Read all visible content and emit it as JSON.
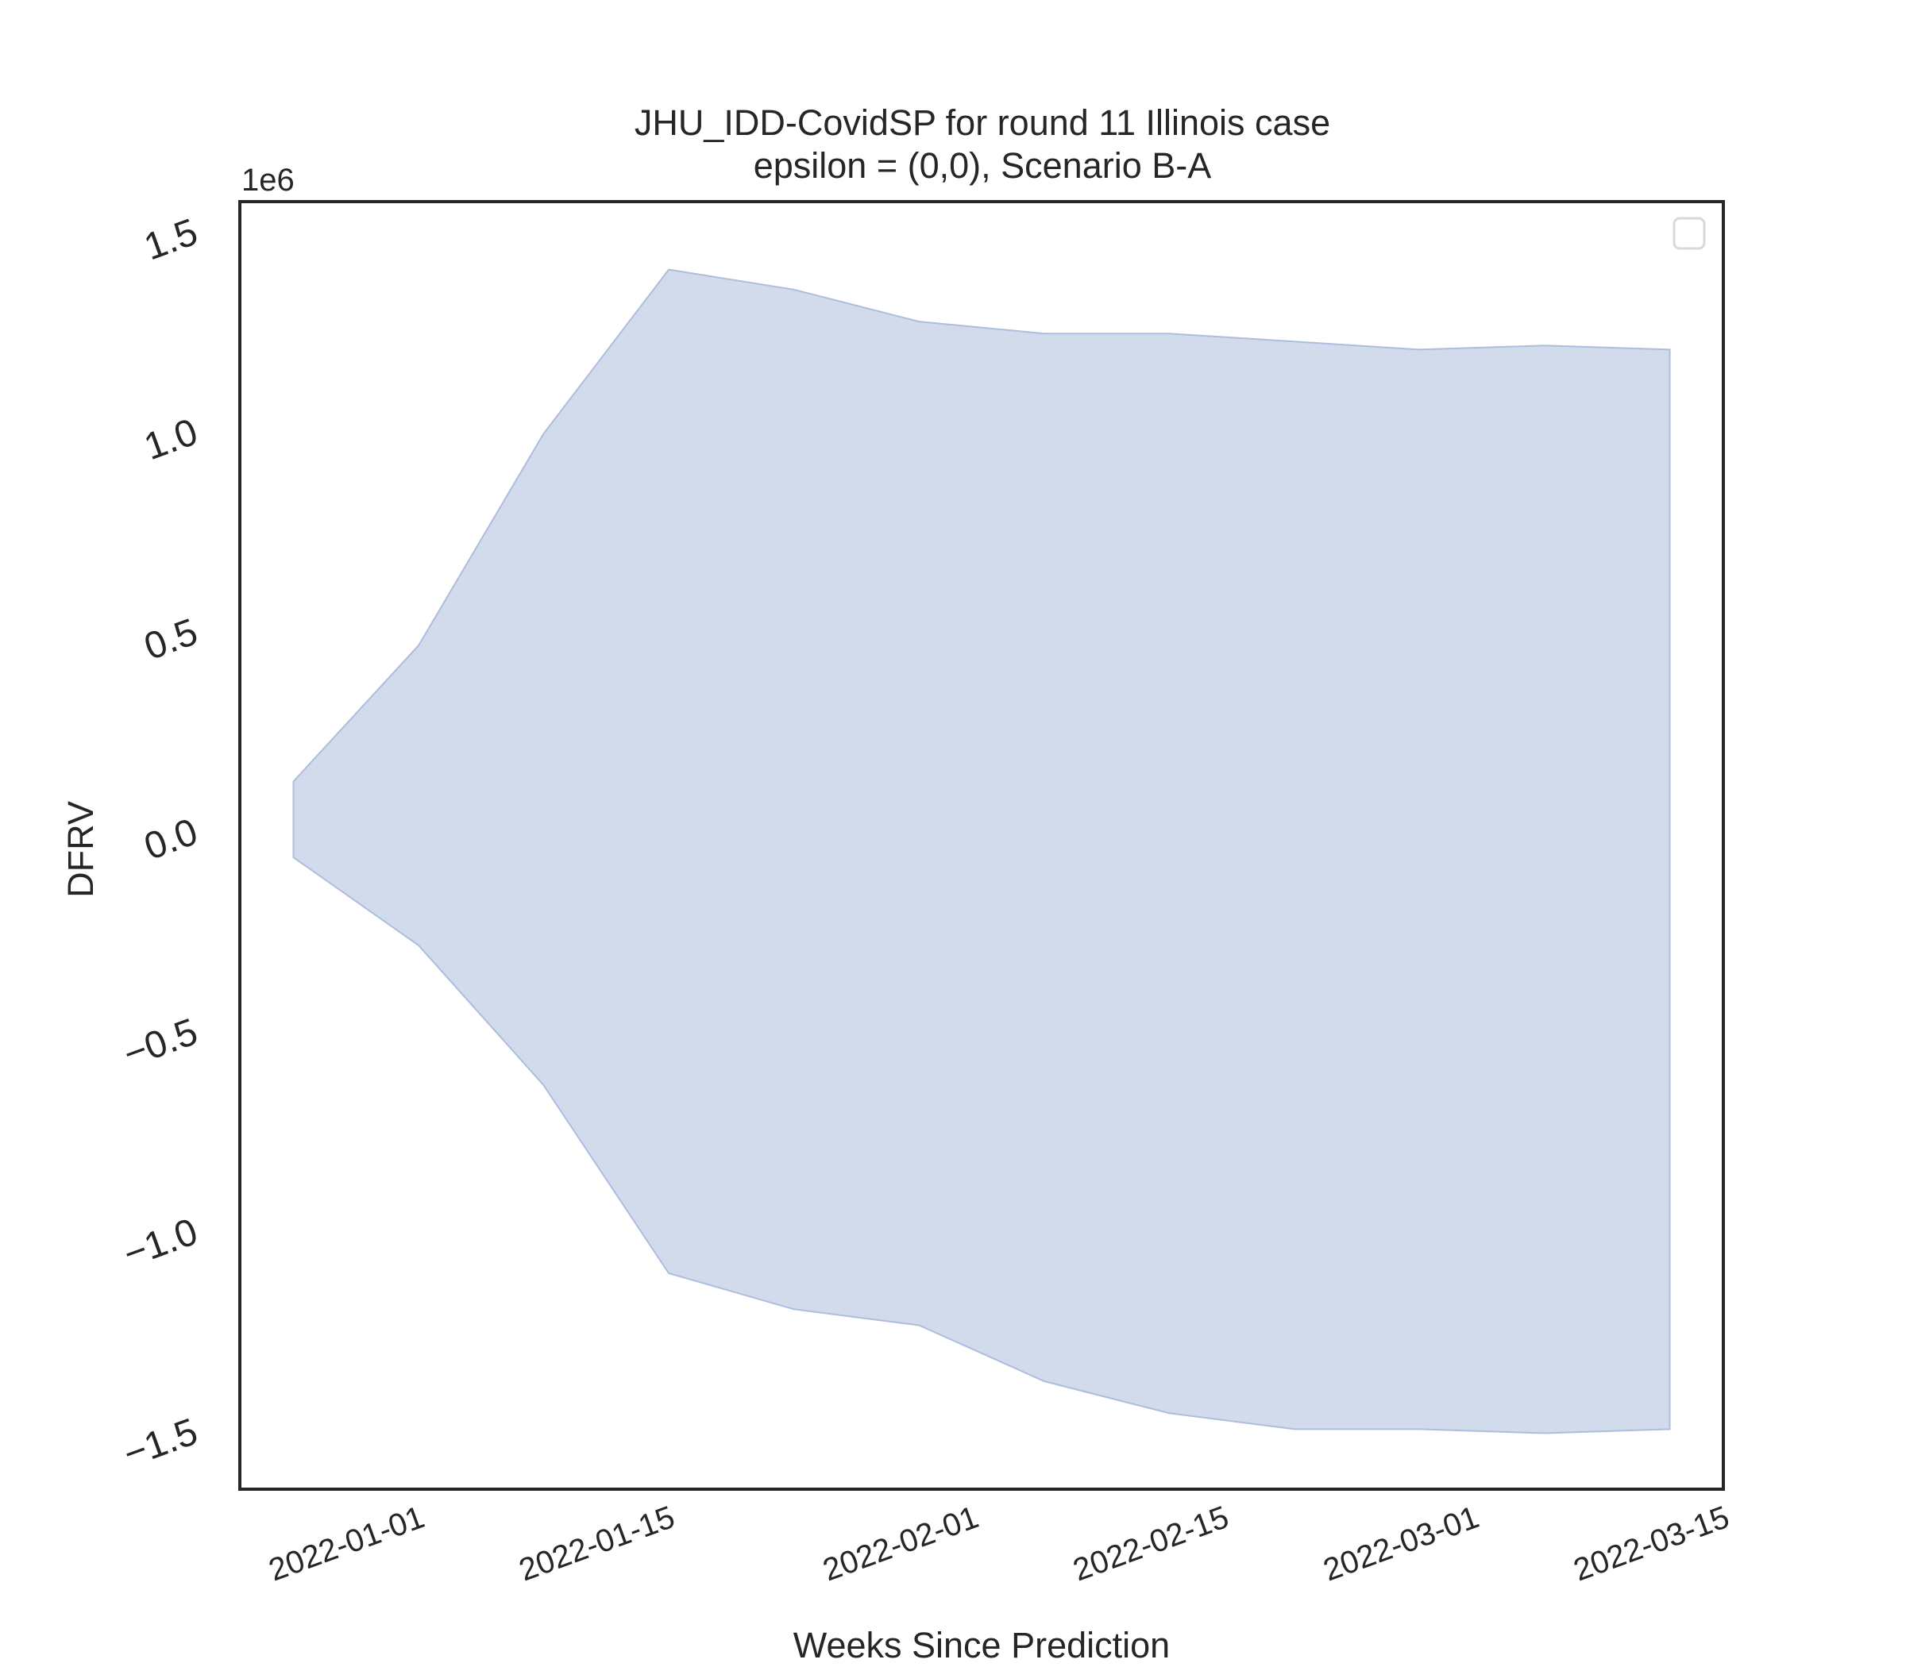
{
  "chart_data": {
    "type": "area",
    "title_line1": "JHU_IDD-CovidSP for round 11 Illinois case",
    "title_line2": "epsilon = (0,0), Scenario B-A",
    "xlabel": "Weeks Since Prediction",
    "ylabel": "DFRV",
    "y_offset_label": "1e6",
    "y_scale": 1000000,
    "ylim": [
      -1.65,
      1.57
    ],
    "xlim": [
      "2021-12-22",
      "2022-03-15"
    ],
    "yticks": [
      -1.5,
      -1.0,
      -0.5,
      0.0,
      0.5,
      1.0,
      1.5
    ],
    "ytick_labels": [
      "−1.5",
      "−1.0",
      "−0.5",
      "0.0",
      "0.5",
      "1.0",
      "1.5"
    ],
    "xticks": [
      "2022-01-01",
      "2022-01-15",
      "2022-02-01",
      "2022-02-15",
      "2022-03-01",
      "2022-03-15"
    ],
    "grid": false,
    "legend": "top-right, empty",
    "band_color": "#b3c3e0",
    "band_edge_color": "#aebddd",
    "series": [
      {
        "dates": [
          "2021-12-25",
          "2022-01-01",
          "2022-01-08",
          "2022-01-15",
          "2022-01-22",
          "2022-01-29",
          "2022-02-05",
          "2022-02-12",
          "2022-02-19",
          "2022-02-26",
          "2022-03-05",
          "2022-03-12"
        ],
        "upper": [
          0.12,
          0.46,
          0.99,
          1.4,
          1.35,
          1.27,
          1.24,
          1.24,
          1.22,
          1.2,
          1.21,
          1.2
        ],
        "lower": [
          -0.07,
          -0.29,
          -0.64,
          -1.11,
          -1.2,
          -1.24,
          -1.38,
          -1.46,
          -1.5,
          -1.5,
          -1.51,
          -1.5
        ]
      }
    ]
  }
}
